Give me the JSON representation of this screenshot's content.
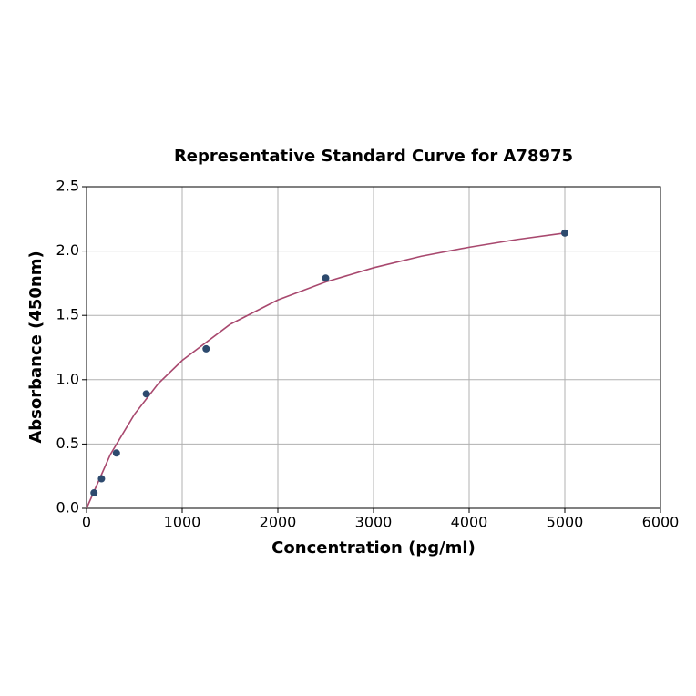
{
  "chart_data": {
    "type": "scatter",
    "title": "Representative Standard Curve for A78975",
    "xlabel": "Concentration (pg/ml)",
    "ylabel": "Absorbance (450nm)",
    "x": [
      78.125,
      156.25,
      312.5,
      625,
      1250,
      2500,
      5000
    ],
    "values": [
      0.12,
      0.23,
      0.43,
      0.89,
      1.24,
      1.79,
      2.14
    ],
    "color": "#2d4a6e",
    "fit": {
      "color": "#a8486e",
      "x": [
        0,
        250,
        500,
        750,
        1000,
        1500,
        2000,
        2500,
        3000,
        3500,
        4000,
        4500,
        5000
      ],
      "values": [
        0,
        0.42,
        0.73,
        0.97,
        1.15,
        1.43,
        1.62,
        1.76,
        1.87,
        1.96,
        2.03,
        2.09,
        2.14
      ]
    },
    "xlim": [
      0,
      6000
    ],
    "xticks": [
      0,
      1000,
      2000,
      3000,
      4000,
      5000,
      6000
    ],
    "ylim": [
      0,
      2.5
    ],
    "yticks": [
      {
        "value": 0,
        "label": "0.0"
      },
      {
        "value": 0.5,
        "label": "0.5"
      },
      {
        "value": 1,
        "label": "1.0"
      },
      {
        "value": 1.5,
        "label": "1.5"
      },
      {
        "value": 2,
        "label": "2.0"
      },
      {
        "value": 2.5,
        "label": "2.5"
      }
    ],
    "grid": true
  }
}
